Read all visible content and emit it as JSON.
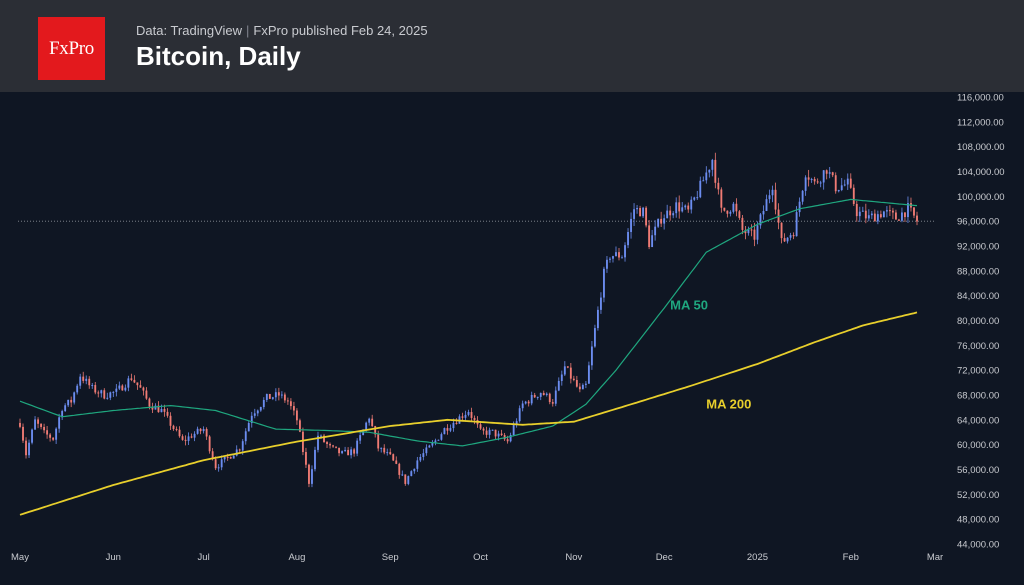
{
  "header": {
    "logo_text": "FxPro",
    "source_label": "Data: TradingView",
    "separator": "|",
    "published": "FxPro published Feb 24, 2025",
    "title": "Bitcoin, Daily"
  },
  "colors": {
    "header_bg": "#2b2e35",
    "plot_bg": "#0f1623",
    "logo_bg": "#e3191d",
    "candle_up": "#6c8df0",
    "candle_down": "#f07b74",
    "ma50": "#1fa77f",
    "ma200": "#e8cf2c",
    "axis_text": "#c9cbd0"
  },
  "chart_data": {
    "type": "candlestick",
    "title": "Bitcoin, Daily",
    "ylim": [
      44000,
      116000
    ],
    "y_ticks": [
      44000,
      48000,
      52000,
      56000,
      60000,
      64000,
      68000,
      72000,
      76000,
      80000,
      84000,
      88000,
      92000,
      96000,
      100000,
      104000,
      108000,
      112000,
      116000
    ],
    "y_tick_labels": [
      "44,000.00",
      "48,000.00",
      "52,000.00",
      "56,000.00",
      "60,000.00",
      "64,000.00",
      "68,000.00",
      "72,000.00",
      "76,000.00",
      "80,000.00",
      "84,000.00",
      "88,000.00",
      "92,000.00",
      "96,000.00",
      "100,000.00",
      "104,000.00",
      "108,000.00",
      "112,000.00",
      "116,000.00"
    ],
    "x_range": [
      "2024-05-01",
      "2025-02-23"
    ],
    "x_ticks": [
      {
        "date": "2024-05-01",
        "label": "May"
      },
      {
        "date": "2024-06-01",
        "label": "Jun"
      },
      {
        "date": "2024-07-01",
        "label": "Jul"
      },
      {
        "date": "2024-08-01",
        "label": "Aug"
      },
      {
        "date": "2024-09-01",
        "label": "Sep"
      },
      {
        "date": "2024-10-01",
        "label": "Oct"
      },
      {
        "date": "2024-11-01",
        "label": "Nov"
      },
      {
        "date": "2024-12-01",
        "label": "Dec"
      },
      {
        "date": "2025-01-01",
        "label": "2025"
      },
      {
        "date": "2025-02-01",
        "label": "Feb"
      },
      {
        "date": "2025-03-01",
        "label": "Mar"
      }
    ],
    "current_price": 96000,
    "price_anchors": [
      {
        "date": "2024-05-01",
        "close": 63500
      },
      {
        "date": "2024-05-03",
        "close": 58500
      },
      {
        "date": "2024-05-06",
        "close": 63800
      },
      {
        "date": "2024-05-09",
        "close": 61800
      },
      {
        "date": "2024-05-12",
        "close": 61000
      },
      {
        "date": "2024-05-15",
        "close": 66000
      },
      {
        "date": "2024-05-18",
        "close": 67000
      },
      {
        "date": "2024-05-21",
        "close": 71200
      },
      {
        "date": "2024-05-25",
        "close": 69000
      },
      {
        "date": "2024-05-29",
        "close": 68000
      },
      {
        "date": "2024-06-02",
        "close": 68500
      },
      {
        "date": "2024-06-07",
        "close": 70800
      },
      {
        "date": "2024-06-10",
        "close": 69000
      },
      {
        "date": "2024-06-13",
        "close": 66500
      },
      {
        "date": "2024-06-17",
        "close": 65500
      },
      {
        "date": "2024-06-24",
        "close": 60500
      },
      {
        "date": "2024-06-27",
        "close": 61500
      },
      {
        "date": "2024-07-01",
        "close": 62500
      },
      {
        "date": "2024-07-05",
        "close": 56500
      },
      {
        "date": "2024-07-08",
        "close": 57500
      },
      {
        "date": "2024-07-13",
        "close": 59500
      },
      {
        "date": "2024-07-17",
        "close": 65000
      },
      {
        "date": "2024-07-22",
        "close": 67500
      },
      {
        "date": "2024-07-26",
        "close": 68000
      },
      {
        "date": "2024-07-29",
        "close": 67000
      },
      {
        "date": "2024-08-01",
        "close": 64000
      },
      {
        "date": "2024-08-05",
        "close": 54000
      },
      {
        "date": "2024-08-08",
        "close": 61500
      },
      {
        "date": "2024-08-12",
        "close": 59500
      },
      {
        "date": "2024-08-16",
        "close": 58500
      },
      {
        "date": "2024-08-20",
        "close": 59000
      },
      {
        "date": "2024-08-25",
        "close": 64500
      },
      {
        "date": "2024-08-28",
        "close": 59500
      },
      {
        "date": "2024-09-01",
        "close": 58000
      },
      {
        "date": "2024-09-06",
        "close": 54000
      },
      {
        "date": "2024-09-10",
        "close": 57500
      },
      {
        "date": "2024-09-15",
        "close": 60000
      },
      {
        "date": "2024-09-19",
        "close": 62500
      },
      {
        "date": "2024-09-23",
        "close": 64000
      },
      {
        "date": "2024-09-27",
        "close": 65500
      },
      {
        "date": "2024-10-01",
        "close": 62000
      },
      {
        "date": "2024-10-05",
        "close": 62000
      },
      {
        "date": "2024-10-10",
        "close": 60500
      },
      {
        "date": "2024-10-15",
        "close": 66500
      },
      {
        "date": "2024-10-21",
        "close": 68500
      },
      {
        "date": "2024-10-25",
        "close": 67000
      },
      {
        "date": "2024-10-29",
        "close": 72500
      },
      {
        "date": "2024-11-03",
        "close": 68500
      },
      {
        "date": "2024-11-05",
        "close": 69500
      },
      {
        "date": "2024-11-07",
        "close": 75500
      },
      {
        "date": "2024-11-11",
        "close": 87500
      },
      {
        "date": "2024-11-13",
        "close": 90500
      },
      {
        "date": "2024-11-17",
        "close": 90500
      },
      {
        "date": "2024-11-21",
        "close": 98000
      },
      {
        "date": "2024-11-24",
        "close": 97500
      },
      {
        "date": "2024-11-26",
        "close": 92500
      },
      {
        "date": "2024-11-30",
        "close": 96500
      },
      {
        "date": "2024-12-05",
        "close": 98500
      },
      {
        "date": "2024-12-09",
        "close": 97500
      },
      {
        "date": "2024-12-13",
        "close": 101500
      },
      {
        "date": "2024-12-17",
        "close": 106000
      },
      {
        "date": "2024-12-20",
        "close": 97500
      },
      {
        "date": "2024-12-24",
        "close": 98500
      },
      {
        "date": "2024-12-27",
        "close": 94500
      },
      {
        "date": "2024-12-31",
        "close": 93500
      },
      {
        "date": "2025-01-06",
        "close": 102000
      },
      {
        "date": "2025-01-09",
        "close": 92500
      },
      {
        "date": "2025-01-13",
        "close": 94500
      },
      {
        "date": "2025-01-17",
        "close": 104000
      },
      {
        "date": "2025-01-20",
        "close": 102000
      },
      {
        "date": "2025-01-24",
        "close": 104500
      },
      {
        "date": "2025-01-27",
        "close": 101500
      },
      {
        "date": "2025-01-31",
        "close": 102000
      },
      {
        "date": "2025-02-03",
        "close": 97500
      },
      {
        "date": "2025-02-07",
        "close": 96500
      },
      {
        "date": "2025-02-12",
        "close": 97500
      },
      {
        "date": "2025-02-16",
        "close": 96500
      },
      {
        "date": "2025-02-20",
        "close": 98000
      },
      {
        "date": "2025-02-23",
        "close": 96000
      }
    ],
    "series": [
      {
        "name": "MA 50",
        "color": "#1fa77f",
        "points": [
          [
            "2024-05-01",
            67000
          ],
          [
            "2024-05-15",
            64500
          ],
          [
            "2024-06-01",
            65500
          ],
          [
            "2024-06-20",
            66300
          ],
          [
            "2024-07-05",
            65500
          ],
          [
            "2024-07-25",
            62500
          ],
          [
            "2024-08-10",
            62300
          ],
          [
            "2024-08-25",
            62000
          ],
          [
            "2024-09-10",
            60600
          ],
          [
            "2024-09-25",
            59800
          ],
          [
            "2024-10-10",
            61200
          ],
          [
            "2024-10-25",
            63000
          ],
          [
            "2024-11-05",
            66500
          ],
          [
            "2024-11-15",
            72000
          ],
          [
            "2024-12-01",
            82000
          ],
          [
            "2024-12-15",
            91000
          ],
          [
            "2025-01-01",
            95500
          ],
          [
            "2025-01-15",
            98000
          ],
          [
            "2025-02-01",
            99500
          ],
          [
            "2025-02-23",
            98500
          ]
        ]
      },
      {
        "name": "MA 200",
        "color": "#e8cf2c",
        "points": [
          [
            "2024-05-01",
            48700
          ],
          [
            "2024-06-01",
            53500
          ],
          [
            "2024-07-01",
            57500
          ],
          [
            "2024-08-01",
            60500
          ],
          [
            "2024-09-01",
            63000
          ],
          [
            "2024-09-20",
            64000
          ],
          [
            "2024-10-15",
            63200
          ],
          [
            "2024-11-01",
            63700
          ],
          [
            "2024-11-20",
            66500
          ],
          [
            "2024-12-10",
            69500
          ],
          [
            "2025-01-01",
            73000
          ],
          [
            "2025-01-20",
            76500
          ],
          [
            "2025-02-05",
            79200
          ],
          [
            "2025-02-23",
            81300
          ]
        ]
      }
    ],
    "annotations": [
      {
        "text": "MA 50",
        "date": "2024-12-03",
        "value": 81800,
        "color": "#1fa77f"
      },
      {
        "text": "MA 200",
        "date": "2024-12-15",
        "value": 65800,
        "color": "#e8cf2c"
      }
    ]
  }
}
